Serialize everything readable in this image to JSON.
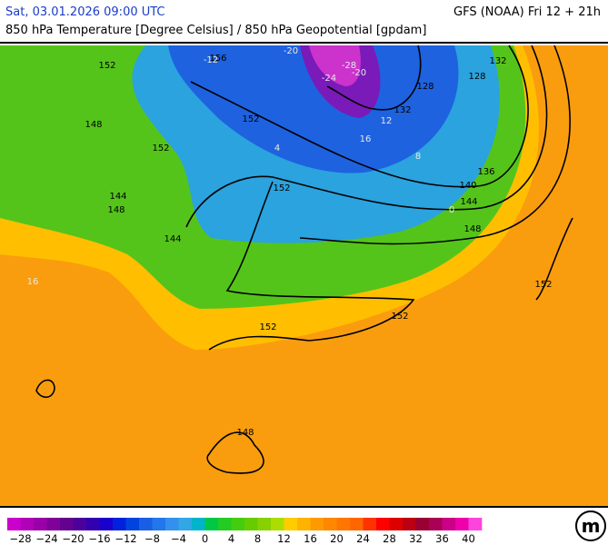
{
  "header": {
    "date": "Sat, 03.01.2026 09:00 UTC",
    "model": "GFS (NOAA) Fri 12 + 21h",
    "subtitle": "850 hPa Temperature [Degree Celsius] / 850 hPa Geopotential [gpdam]"
  },
  "map": {
    "geopotential_labels": [
      "156",
      "152",
      "132",
      "128",
      "128",
      "132",
      "152",
      "148",
      "152",
      "136",
      "140",
      "144",
      "152",
      "144",
      "148",
      "144",
      "148",
      "152",
      "152",
      "152",
      "148"
    ],
    "temperature_labels": [
      "-20",
      "-28",
      "-24",
      "-20",
      "-12",
      "16",
      "12",
      "8",
      "4",
      "0",
      "16"
    ]
  },
  "legend": {
    "ticks": [
      "−28",
      "−24",
      "−20",
      "−16",
      "−12",
      "−8",
      "−4",
      "0",
      "4",
      "8",
      "12",
      "16",
      "20",
      "24",
      "28",
      "32",
      "36",
      "40"
    ],
    "colors": [
      "#cc00cc",
      "#b000b8",
      "#9900a8",
      "#80009a",
      "#66008f",
      "#4c009c",
      "#3300b0",
      "#1a00cc",
      "#0022dd",
      "#0044e0",
      "#1a5ee6",
      "#2277ea",
      "#3390ee",
      "#33a6e6",
      "#00b4cc",
      "#00c846",
      "#22cc22",
      "#44cc11",
      "#66cc00",
      "#88d000",
      "#aadd00",
      "#ffcc00",
      "#ffb300",
      "#ff9900",
      "#ff8800",
      "#ff7700",
      "#ff6600",
      "#ff3300",
      "#ff0000",
      "#dd0000",
      "#bb0011",
      "#990033",
      "#aa0055",
      "#cc0088",
      "#ee00aa",
      "#ff44dd"
    ]
  }
}
